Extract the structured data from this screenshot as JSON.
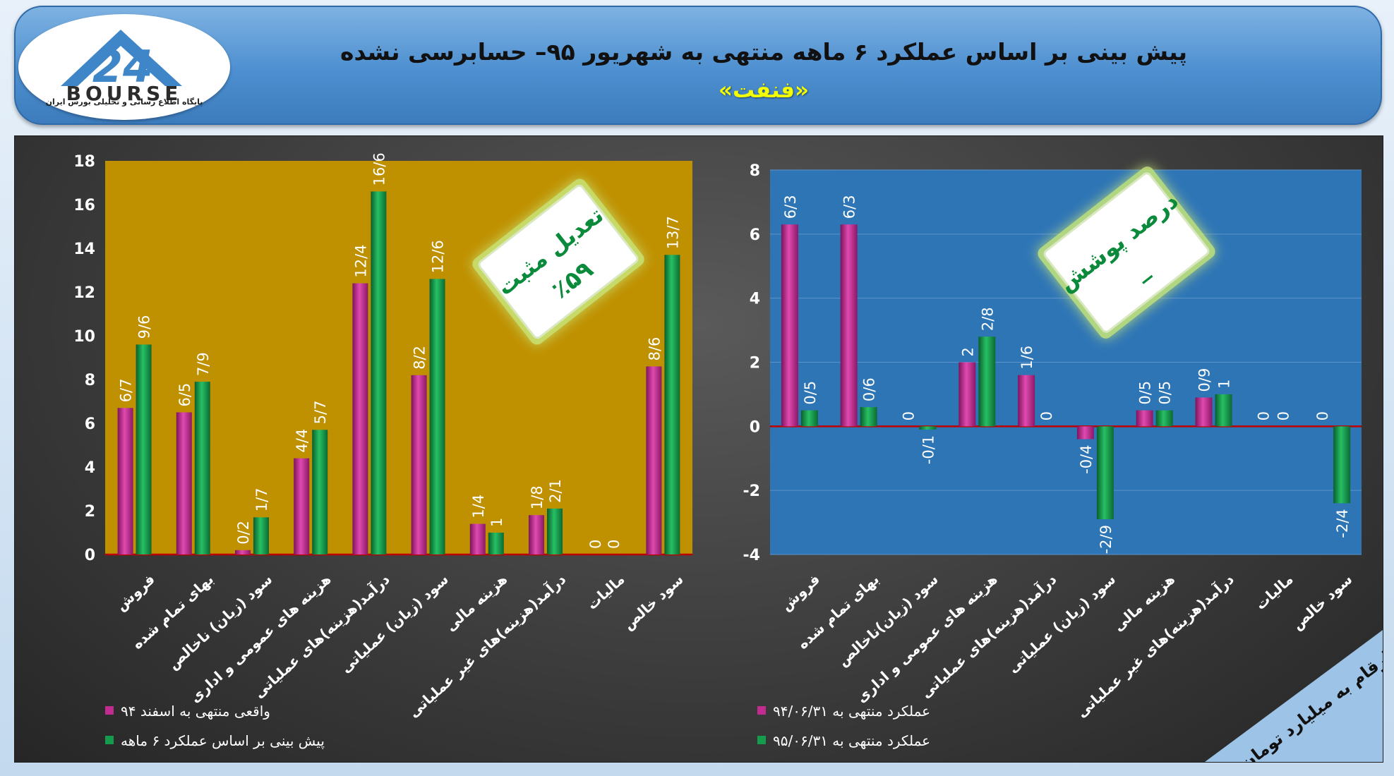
{
  "header": {
    "title": "پیش بینی بر اساس عملکرد ۶ ماهه منتهی به شهریور ۹۵– حسابرسی نشده",
    "company": "«فنفت»"
  },
  "logo": {
    "number": "24",
    "name": "BOURSE",
    "subtitle": "پایگاه اطلاع رسانی و تحلیلی بورس ایران"
  },
  "colors": {
    "series_a": "#c22b8f",
    "series_b": "#159b4c",
    "left_plot_bg": "#bf9000",
    "right_plot_bg": "#2e75b6",
    "zero_line": "#c00000",
    "badge_text": "#0a8a3a"
  },
  "unit_note": "ارقام به میلیارد تومان",
  "chart_data": [
    {
      "type": "bar",
      "categories": [
        "فروش",
        "بهای تمام شده",
        "سود (زیان) ناخالص",
        "هزینه های عمومی و اداری",
        "درآمد(هزینه)های عملیاتی",
        "سود (زیان) عملیاتی",
        "هزینه مالی",
        "درآمد(هزینه)های غیر عملیاتی",
        "مالیات",
        "سود خالص"
      ],
      "series": [
        {
          "name": "واقعی منتهی به اسفند ۹۴",
          "values": [
            6.7,
            6.5,
            0.2,
            4.4,
            12.4,
            8.2,
            1.4,
            1.8,
            0,
            8.6
          ],
          "labels": [
            "6/7",
            "6/5",
            "0/2",
            "4/4",
            "12/4",
            "8/2",
            "1/4",
            "1/8",
            "0",
            "8/6"
          ]
        },
        {
          "name": "پیش بینی بر اساس عملکرد ۶ ماهه",
          "values": [
            9.6,
            7.9,
            1.7,
            5.7,
            16.6,
            12.6,
            1,
            2.1,
            0,
            13.7
          ],
          "labels": [
            "9/6",
            "7/9",
            "1/7",
            "5/7",
            "16/6",
            "12/6",
            "1",
            "2/1",
            "0",
            "13/7"
          ]
        }
      ],
      "ylim": [
        0,
        18
      ],
      "yticks": [
        "0",
        "2",
        "4",
        "6",
        "8",
        "10",
        "12",
        "14",
        "16",
        "18"
      ],
      "legend": "bottom-left",
      "badge": {
        "line1": "تعدیل مثبت",
        "line2": "٪۵۹"
      }
    },
    {
      "type": "bar",
      "categories": [
        "فروش",
        "بهای تمام شده",
        "سود (زیان)ناخالص",
        "هزینه های عمومی و اداری",
        "درآمد(هزینه)های عملیاتی",
        "سود (زیان) عملیاتی",
        "هزینه مالی",
        "درآمد(هزینه)های غیر عملیاتی",
        "مالیات",
        "سود خالص"
      ],
      "series": [
        {
          "name": "عملکرد منتهی به ۹۴/۰۶/۳۱",
          "values": [
            6.3,
            6.3,
            0,
            2,
            1.6,
            -0.4,
            0.5,
            0.9,
            0,
            0
          ],
          "labels": [
            "6/3",
            "6/3",
            "0",
            "2",
            "1/6",
            "-0/4",
            "0/5",
            "0/9",
            "0",
            "0"
          ]
        },
        {
          "name": "عملکرد منتهی به ۹۵/۰۶/۳۱",
          "values": [
            0.5,
            0.6,
            -0.1,
            2.8,
            0,
            -2.9,
            0.5,
            1,
            0,
            -2.4
          ],
          "labels": [
            "0/5",
            "0/6",
            "-0/1",
            "2/8",
            "0",
            "-2/9",
            "0/5",
            "1",
            "0",
            "-2/4"
          ]
        }
      ],
      "ylim": [
        -4,
        8
      ],
      "yticks": [
        "-4",
        "-2",
        "0",
        "2",
        "4",
        "6",
        "8"
      ],
      "legend": "bottom-left",
      "badge": {
        "line1": "درصد پوشش",
        "line2": "_"
      }
    }
  ]
}
